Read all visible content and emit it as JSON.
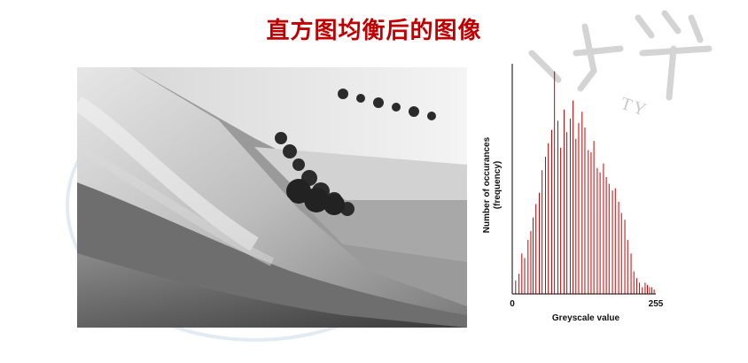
{
  "slide": {
    "title": "直方图均衡后的图像",
    "watermark_text": "TY",
    "title_color": "#c00000"
  },
  "photo": {
    "subject": "landscape-photo",
    "tones": "greyscale"
  },
  "chart_data": {
    "type": "bar",
    "xlabel": "Greyscale value",
    "ylabel": [
      "Number of occurances",
      "(frequency)"
    ],
    "xlim": [
      0,
      255
    ],
    "x_tick_labels": [
      "0",
      "255"
    ],
    "bar_color": "#cc0000",
    "axis_color": "#000000",
    "grid": false,
    "legend": "none",
    "values": [
      0.04,
      0.06,
      0.09,
      0.18,
      0.16,
      0.24,
      0.28,
      0.34,
      0.4,
      0.45,
      0.55,
      0.61,
      0.67,
      0.73,
      0.99,
      0.77,
      0.65,
      0.82,
      0.72,
      0.78,
      0.86,
      0.69,
      0.76,
      0.81,
      0.74,
      0.64,
      0.63,
      0.68,
      0.56,
      0.54,
      0.58,
      0.52,
      0.49,
      0.46,
      0.47,
      0.41,
      0.36,
      0.33,
      0.24,
      0.18,
      0.1,
      0.07,
      0.05,
      0.03,
      0.05,
      0.04,
      0.03,
      0.03,
      0.02
    ],
    "x_positions": [
      0,
      6,
      12,
      17,
      22,
      28,
      33,
      37,
      42,
      48,
      53,
      59,
      64,
      70,
      75,
      81,
      86,
      92,
      97,
      103,
      108,
      113,
      118,
      124,
      129,
      135,
      140,
      145,
      151,
      156,
      162,
      167,
      172,
      178,
      183,
      189,
      194,
      200,
      205,
      211,
      216,
      221,
      226,
      231,
      236,
      240,
      244,
      248,
      252
    ]
  }
}
